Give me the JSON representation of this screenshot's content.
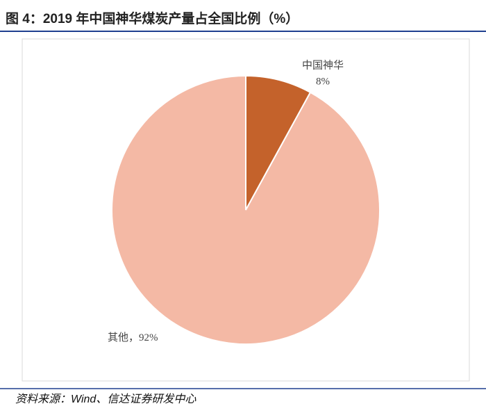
{
  "chart_data": {
    "type": "pie",
    "title": "图 4：2019 年中国神华煤炭产量占全国比例（%）",
    "categories": [
      "中国神华",
      "其他"
    ],
    "values": [
      8,
      92
    ],
    "value_labels": [
      "8%",
      "92%"
    ],
    "label_separator": "，",
    "colors": [
      "#c4622b",
      "#f4b9a5"
    ],
    "source": "资料来源：Wind、信达证券研发中心"
  }
}
